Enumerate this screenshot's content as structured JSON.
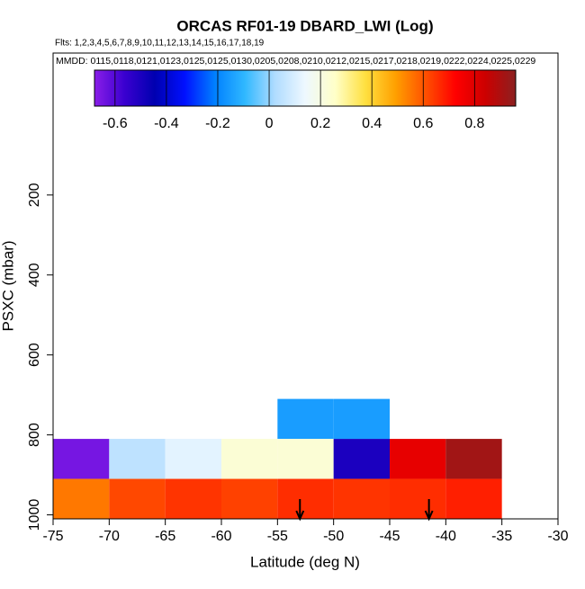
{
  "chart_data": {
    "type": "heatmap",
    "title": "ORCAS RF01-19 DBARD_LWI (Log)",
    "subtitle": "Flts: 1,2,3,4,5,6,7,8,9,10,11,12,13,14,15,16,17,18,19",
    "annotation": "MMDD: 0115,0118,0121,0123,0125,0125,0130,0205,0208,0210,0212,0215,0217,0218,0219,0222,0224,0225,0229",
    "xlabel": "Latitude (deg N)",
    "ylabel": "PSXC (mbar)",
    "x_bins": [
      -75,
      -70,
      -65,
      -60,
      -55,
      -50,
      -45,
      -40,
      -35
    ],
    "y_bins": [
      710,
      810,
      910,
      1010
    ],
    "values": [
      [
        null,
        null,
        null,
        null,
        -0.15,
        -0.15,
        null,
        null
      ],
      [
        -0.65,
        0.05,
        0.12,
        0.23,
        0.23,
        -0.5,
        0.78,
        0.92
      ],
      [
        0.55,
        0.62,
        0.65,
        0.63,
        0.66,
        0.65,
        0.66,
        0.68
      ]
    ],
    "xlim": [
      -75,
      -30
    ],
    "xticks": [
      -75,
      -70,
      -65,
      -60,
      -55,
      -50,
      -45,
      -40,
      -35,
      -30
    ],
    "ylim": [
      1010,
      -155
    ],
    "yticks": [
      200,
      400,
      600,
      800,
      1000
    ],
    "zlim": [
      -0.68,
      0.96
    ],
    "zticks": [
      -0.6,
      -0.4,
      -0.2,
      0.0,
      0.2,
      0.4,
      0.6,
      0.8
    ],
    "colormap": [
      "#8a1ee8",
      "#3a00d0",
      "#0000b0",
      "#0010ff",
      "#0080ff",
      "#30b8ff",
      "#b0dcff",
      "#eef8ff",
      "#ffffc8",
      "#ffe040",
      "#ffa000",
      "#ff5000",
      "#ff0000",
      "#cc0000",
      "#8b2020"
    ],
    "arrows": [
      -53,
      -41.5
    ]
  }
}
